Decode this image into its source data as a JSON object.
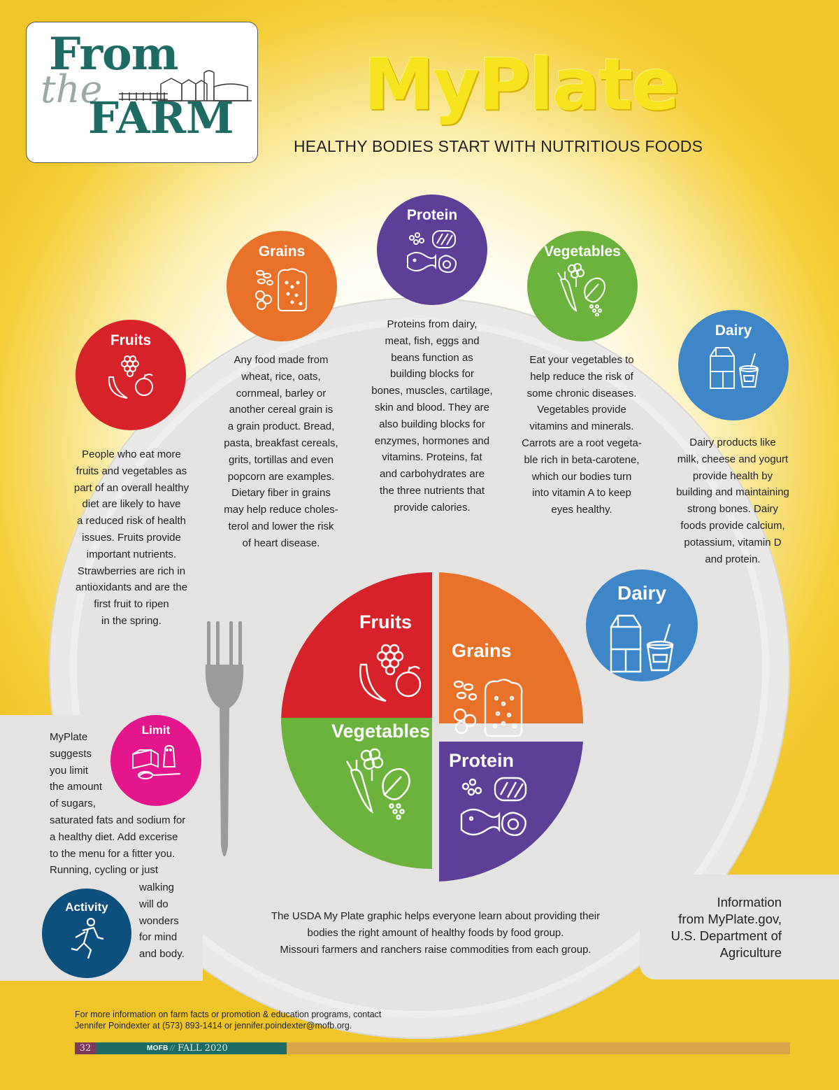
{
  "header": {
    "logo": {
      "line1": "From",
      "line2": "the",
      "line3": "FARM"
    },
    "title": "MyPlate",
    "subtitle": "HEALTHY BODIES START WITH NUTRITIOUS FOODS"
  },
  "groups": [
    {
      "key": "fruits",
      "label": "Fruits",
      "color": "#d7222a",
      "description": "People who eat more\nfruits and vegetables as\npart of an overall healthy\ndiet are likely to have\na reduced risk of health\nissues. Fruits provide\nimportant nutrients.\nStrawberries are rich in\nantioxidants and are the\nfirst fruit to ripen\nin the spring."
    },
    {
      "key": "grains",
      "label": "Grains",
      "color": "#e8722a",
      "description": "Any food made from\nwheat, rice, oats,\ncornmeal, barley or\nanother cereal grain is\na grain product. Bread,\npasta, breakfast cereals,\ngrits, tortillas and even\npopcorn are examples.\nDietary fiber in grains\nmay help reduce choles-\nterol and lower the risk\nof heart disease."
    },
    {
      "key": "protein",
      "label": "Protein",
      "color": "#5e3f97",
      "description": "Proteins from dairy,\nmeat, fish, eggs and\nbeans function as\nbuilding blocks for\nbones, muscles, cartilage,\nskin and blood. They are\nalso building blocks for\nenzymes, hormones and\nvitamins. Proteins, fat\nand carbohydrates are\nthe three nutrients that\nprovide calories."
    },
    {
      "key": "vegetables",
      "label": "Vegetables",
      "color": "#6cb33e",
      "description": "Eat your vegetables to\nhelp reduce the risk of\nsome chronic diseases.\nVegetables provide\nvitamins and minerals.\nCarrots are a root vegeta-\nble rich in beta-carotene,\nwhich our bodies turn\ninto vitamin A to keep\neyes healthy."
    },
    {
      "key": "dairy",
      "label": "Dairy",
      "color": "#3f86c8",
      "description": "Dairy products like\nmilk, cheese and yogurt\nprovide health by\nbuilding and maintaining\nstrong bones. Dairy\nfoods provide calcium,\npotassium, vitamin D\nand protein."
    }
  ],
  "plate": {
    "fruits": "Fruits",
    "grains": "Grains",
    "vegetables": "Vegetables",
    "protein": "Protein",
    "dairy": "Dairy",
    "caption": "The USDA My Plate graphic helps everyone learn about providing their\nbodies the right amount of healthy foods by food group.\nMissouri farmers and ranchers raise commodities from each group."
  },
  "limit": {
    "label": "Limit",
    "color": "#e4168b",
    "text_top": "MyPlate\nsuggests\nyou limit\nthe amount\nof sugars,\nsaturated fats and sodium for\na healthy diet. Add excerise\nto the menu for a fitter you.\nRunning, cycling or just",
    "text_bottom": "walking\nwill do\nwonders\nfor mind\nand body."
  },
  "activity": {
    "label": "Activity",
    "color": "#0d4f7d"
  },
  "source": "Information\nfrom MyPlate.gov,\nU.S. Department of\nAgriculture",
  "footer": {
    "contact": "For more information on farm facts or promotion & education programs, contact\nJennifer Poindexter at (573) 893-1414 or jennifer.poindexter@mofb.org.",
    "page_number": "32",
    "magazine": "MOFB",
    "separator": "//",
    "issue": "FALL 2020"
  }
}
